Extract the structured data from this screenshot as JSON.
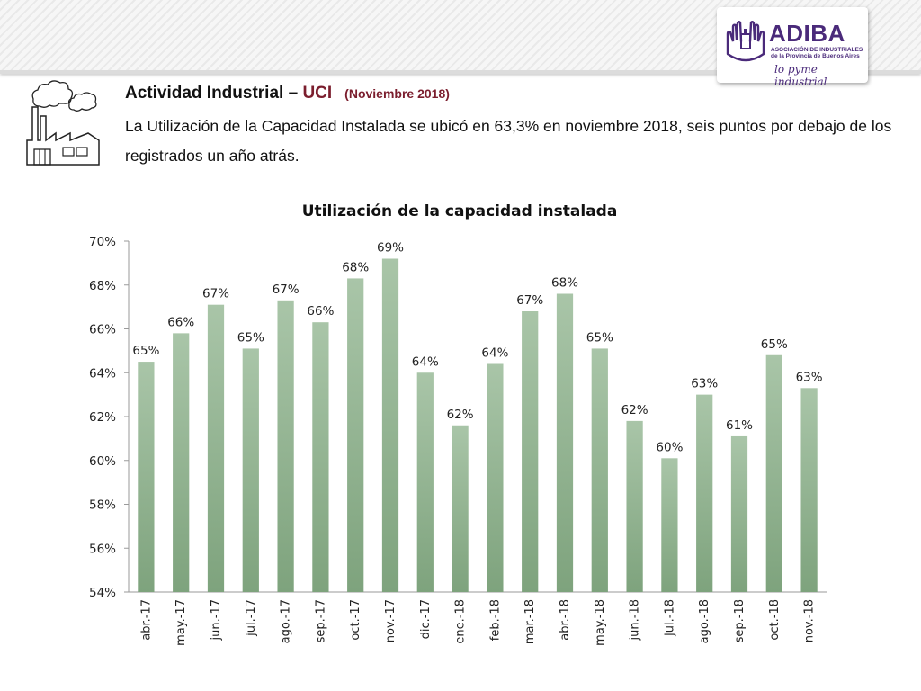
{
  "header": {
    "logo_name": "ADIBA",
    "logo_subtitle_line1": "ASOCIACIÓN DE INDUSTRIALES",
    "logo_subtitle_line2": "de la Provincia de Buenos Aires",
    "logo_tagline": "lo pyme industrial",
    "brand_color": "#4a2a7a"
  },
  "headline": {
    "title": "Actividad Industrial – ",
    "accent": "UCI",
    "date": "(Noviembre 2018)",
    "accent_color": "#7b1e2e"
  },
  "summary": "La Utilización de la Capacidad Instalada se ubicó en 63,3% en noviembre 2018, seis puntos por debajo de los registrados un año atrás.",
  "icons": [
    "factory-icon",
    "adiba-emblem-icon"
  ],
  "chart_data": {
    "type": "bar",
    "title": "Utilización de la capacidad instalada",
    "categories": [
      "abr.-17",
      "may.-17",
      "jun.-17",
      "jul.-17",
      "ago.-17",
      "sep.-17",
      "oct.-17",
      "nov.-17",
      "dic.-17",
      "ene.-18",
      "feb.-18",
      "mar.-18",
      "abr.-18",
      "may.-18",
      "jun.-18",
      "jul.-18",
      "ago.-18",
      "sep.-18",
      "oct.-18",
      "nov.-18"
    ],
    "values": [
      64.5,
      65.8,
      67.1,
      65.1,
      67.3,
      66.3,
      68.3,
      69.2,
      64.0,
      61.6,
      64.4,
      66.8,
      67.6,
      65.1,
      61.8,
      60.1,
      63.0,
      61.1,
      64.8,
      63.3
    ],
    "data_labels": [
      "65%",
      "66%",
      "67%",
      "65%",
      "67%",
      "66%",
      "68%",
      "69%",
      "64%",
      "62%",
      "64%",
      "67%",
      "68%",
      "65%",
      "62%",
      "60%",
      "63%",
      "61%",
      "65%",
      "63%"
    ],
    "yticks": [
      "54%",
      "56%",
      "58%",
      "60%",
      "62%",
      "64%",
      "66%",
      "68%",
      "70%"
    ],
    "ylim": [
      54,
      70
    ],
    "ytick_step": 2,
    "bar_color": "#8fb08f",
    "grid": false,
    "legend": "none"
  }
}
